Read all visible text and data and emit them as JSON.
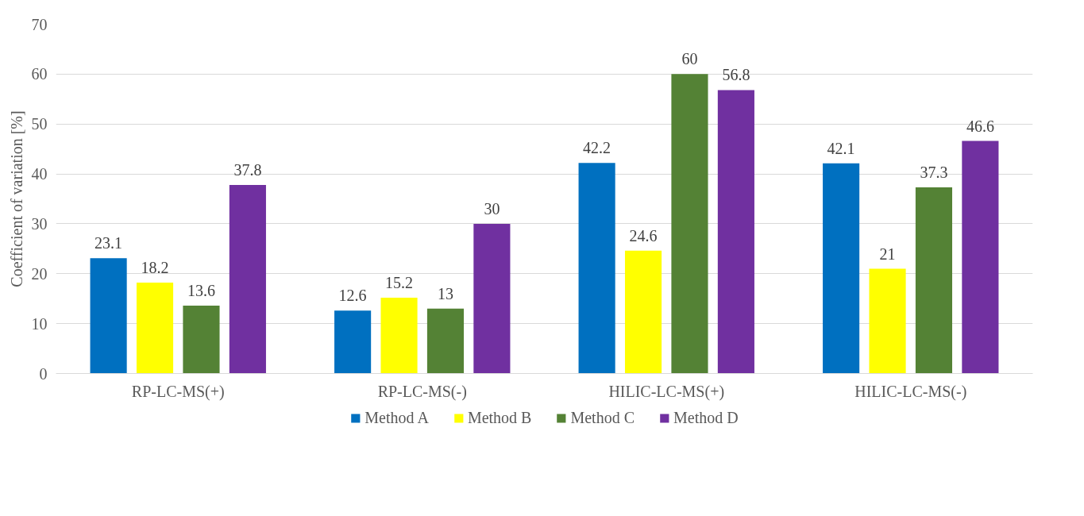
{
  "chart_data": {
    "type": "bar",
    "ylabel": "Coefficient of variation [%]",
    "categories": [
      "RP-LC-MS(+)",
      "RP-LC-MS(-)",
      "HILIC-LC-MS(+)",
      "HILIC-LC-MS(-)"
    ],
    "series": [
      {
        "name": "Method A",
        "color": "#0070c0",
        "values": [
          23.1,
          12.6,
          42.2,
          42.1
        ]
      },
      {
        "name": "Method B",
        "color": "#ffff00",
        "values": [
          18.2,
          15.2,
          24.6,
          21
        ]
      },
      {
        "name": "Method C",
        "color": "#548235",
        "values": [
          13.6,
          13,
          60,
          37.3
        ]
      },
      {
        "name": "Method D",
        "color": "#7030a0",
        "values": [
          37.8,
          30,
          56.8,
          46.6
        ]
      }
    ],
    "ylim": [
      0,
      70
    ],
    "yticks": [
      0,
      10,
      20,
      30,
      40,
      50,
      60,
      70
    ],
    "grid": "y",
    "data_labels": true,
    "legend": "bottom"
  }
}
